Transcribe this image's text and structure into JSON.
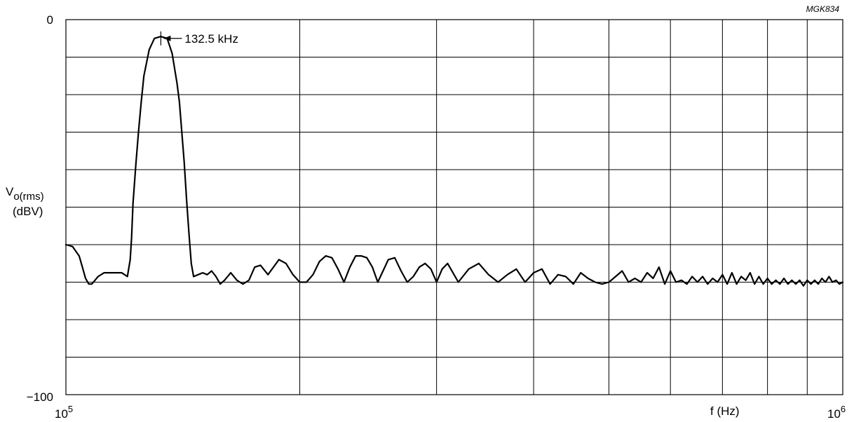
{
  "figure_code": "MGK834",
  "chart_data": {
    "type": "line",
    "title": "",
    "xlabel": "f (Hz)",
    "ylabel_main": "V",
    "ylabel_sub": "o(rms)",
    "ylabel_unit": "(dBV)",
    "x_scale": "log",
    "xlim": [
      100000,
      1000000
    ],
    "ylim": [
      -100,
      0
    ],
    "x_tick_labels": {
      "min_base": "10",
      "min_exp": "5",
      "max_base": "10",
      "max_exp": "6"
    },
    "y_tick_labels": {
      "max": "0",
      "min": "−100"
    },
    "grid": true,
    "annotation": {
      "text": "132.5 kHz",
      "x": 132500,
      "y": -5
    },
    "series": [
      {
        "x": [
          100000,
          102000,
          104000,
          105000,
          106000,
          107000,
          108000,
          110000,
          112000,
          115000,
          118000,
          120000,
          121000,
          121500,
          122000,
          123000,
          124000,
          125000,
          126000,
          128000,
          130000,
          132500,
          135000,
          137000,
          139000,
          140000,
          141000,
          142000,
          143000,
          144000,
          145000,
          146000,
          148000,
          150000,
          152000,
          154000,
          156000,
          158000,
          160000,
          163000,
          166000,
          169000,
          172000,
          175000,
          178000,
          182000,
          185000,
          188000,
          192000,
          196000,
          200000,
          204000,
          208000,
          212000,
          216000,
          220000,
          224000,
          228000,
          232000,
          236000,
          240000,
          244000,
          248000,
          252000,
          256000,
          260000,
          265000,
          270000,
          275000,
          280000,
          285000,
          290000,
          295000,
          300000,
          305000,
          310000,
          320000,
          330000,
          340000,
          350000,
          360000,
          370000,
          380000,
          390000,
          400000,
          410000,
          420000,
          430000,
          440000,
          450000,
          460000,
          470000,
          480000,
          490000,
          500000,
          510000,
          520000,
          530000,
          540000,
          550000,
          560000,
          570000,
          580000,
          590000,
          600000,
          610000,
          620000,
          630000,
          640000,
          650000,
          660000,
          670000,
          680000,
          690000,
          700000,
          710000,
          720000,
          730000,
          740000,
          750000,
          760000,
          770000,
          780000,
          790000,
          800000,
          810000,
          820000,
          830000,
          840000,
          850000,
          860000,
          870000,
          880000,
          890000,
          900000,
          910000,
          920000,
          930000,
          940000,
          950000,
          960000,
          970000,
          980000,
          990000,
          1000000
        ],
        "y": [
          -60,
          -60.5,
          -63,
          -66,
          -69,
          -70.5,
          -70.5,
          -68.5,
          -67.5,
          -67.5,
          -67.5,
          -68.5,
          -64,
          -58,
          -49,
          -39,
          -30,
          -22,
          -15,
          -8,
          -5,
          -4.5,
          -5,
          -9,
          -17,
          -22,
          -30,
          -38,
          -48,
          -57,
          -65,
          -68.5,
          -68,
          -67.5,
          -68,
          -67,
          -68.5,
          -70.5,
          -69.5,
          -67.5,
          -69.5,
          -70.5,
          -69.5,
          -66,
          -65.5,
          -68,
          -66,
          -64,
          -65,
          -68,
          -70,
          -70,
          -68,
          -64.5,
          -63,
          -63.5,
          -66.5,
          -70,
          -66,
          -63,
          -63,
          -63.5,
          -66,
          -70,
          -67,
          -64,
          -63.5,
          -67,
          -70,
          -68.5,
          -66,
          -65,
          -66.5,
          -70,
          -66.5,
          -65,
          -70,
          -66.5,
          -65,
          -68,
          -70,
          -68,
          -66.5,
          -70,
          -67.5,
          -66.5,
          -70.5,
          -68,
          -68.5,
          -70.5,
          -67.5,
          -69,
          -70,
          -70.5,
          -70,
          -68.5,
          -67,
          -70,
          -69,
          -70,
          -67.5,
          -69,
          -66,
          -70.5,
          -67,
          -70,
          -69.5,
          -70.5,
          -68.5,
          -70,
          -68.5,
          -70.5,
          -69,
          -70,
          -68,
          -70.5,
          -67.5,
          -70.5,
          -68.5,
          -69.5,
          -67.5,
          -70.5,
          -68.5,
          -70.5,
          -69,
          -70.5,
          -69.5,
          -70.5,
          -69,
          -70.5,
          -69.5,
          -70.5,
          -69.5,
          -71,
          -69.5,
          -70.5,
          -69.5,
          -70.5,
          -69,
          -70,
          -68.5,
          -70,
          -69.5,
          -70.5,
          -70
        ]
      }
    ]
  }
}
